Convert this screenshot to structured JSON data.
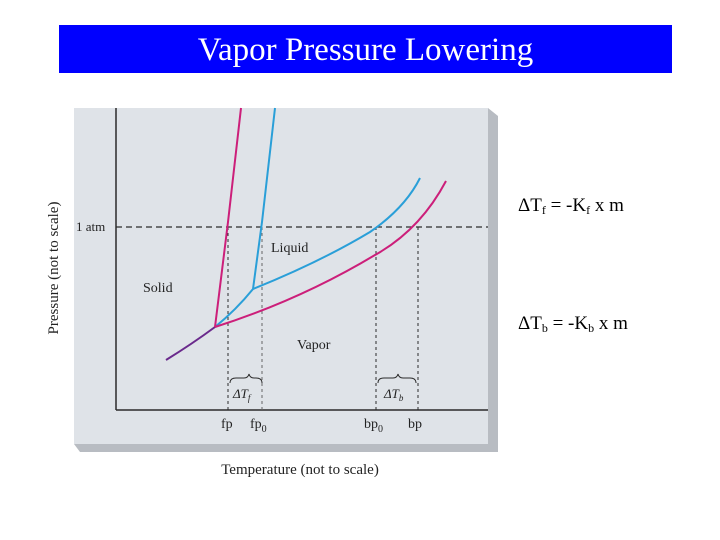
{
  "title": "Vapor Pressure Lowering",
  "diagram": {
    "y_axis_label": "Pressure (not to scale)",
    "x_axis_label": "Temperature (not to scale)",
    "pressure_line_label": "1 atm",
    "region_solid": "Solid",
    "region_liquid": "Liquid",
    "region_vapor": "Vapor",
    "delta_tf_label": "ΔT",
    "delta_tf_sub": "f",
    "delta_tb_label": "ΔT",
    "delta_tb_sub": "b",
    "tick_fp": "fp",
    "tick_fp0_main": "fp",
    "tick_fp0_sub": "0",
    "tick_bp0_main": "bp",
    "tick_bp0_sub": "0",
    "tick_bp": "bp",
    "colors": {
      "solution": "#cc1f7a",
      "solvent": "#2a9fd8",
      "background": "#dfe3e8"
    }
  },
  "equations": {
    "freezing": {
      "lhs": "ΔT",
      "lhs_sub": "f",
      "mid": " = -K",
      "k_sub": "f",
      "rhs": " x m"
    },
    "boiling": {
      "lhs": "ΔT",
      "lhs_sub": "b",
      "mid": " = -K",
      "k_sub": "b",
      "rhs": " x m"
    }
  }
}
